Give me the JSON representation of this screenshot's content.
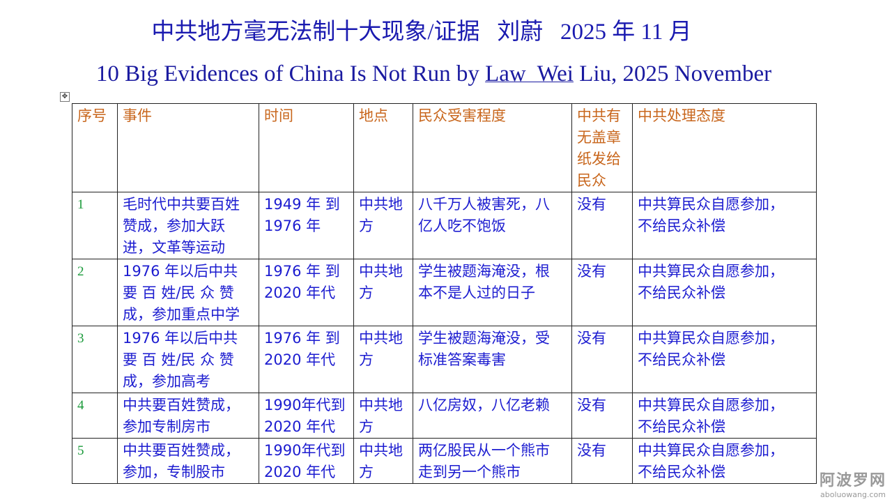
{
  "title_cn": "中共地方毫无法制十大现象/证据   刘蔚   2025 年 11 月",
  "title_en_pre": "10 Big Evidences of China Is Not Run by ",
  "title_en_link": "Law  Wei",
  "title_en_post": " Liu, 2025 November",
  "colors": {
    "title": "#1a1ab0",
    "header": "#c8661c",
    "number": "#1a9a3a",
    "body": "#1c1cd0"
  },
  "table": {
    "headers": [
      "序号",
      "事件",
      "时间",
      "地点",
      "民众受害程度",
      "中共有\n无盖章\n纸发给\n民众",
      "中共处理态度"
    ],
    "rows": [
      [
        "1",
        "毛时代中共要百姓\n赞成，参加大跃\n进，文革等运动",
        "1949  年 到\n1976 年",
        "中共地\n方",
        "八千万人被害死，八\n亿人吃不饱饭",
        "没有",
        "中共算民众自愿参加，\n不给民众补偿"
      ],
      [
        "2",
        "1976 年以后中共\n要 百 姓/民 众 赞\n成，参加重点中学",
        "1976  年 到\n2020 年代",
        "中共地\n方",
        "学生被题海淹没，根\n本不是人过的日子",
        "没有",
        "中共算民众自愿参加，\n不给民众补偿"
      ],
      [
        "3",
        "1976 年以后中共\n要 百 姓/民 众 赞\n成，参加高考",
        "1976  年 到\n2020 年代",
        "中共地\n方",
        "学生被题海淹没，受\n标准答案毒害",
        "没有",
        "中共算民众自愿参加，\n不给民众补偿"
      ],
      [
        "4",
        "中共要百姓赞成，\n参加专制房市",
        "1990年代到\n2020 年代",
        "中共地\n方",
        "八亿房奴，八亿老赖",
        "没有",
        "中共算民众自愿参加，\n不给民众补偿"
      ],
      [
        "5",
        "中共要百姓赞成，\n参加，专制股市",
        "1990年代到\n2020 年代",
        "中共地\n方",
        "两亿股民从一个熊市\n走到另一个熊市",
        "没有",
        "中共算民众自愿参加，\n不给民众补偿"
      ]
    ]
  },
  "watermark": {
    "cn": "阿波罗网",
    "url": "aboluowang.com"
  }
}
